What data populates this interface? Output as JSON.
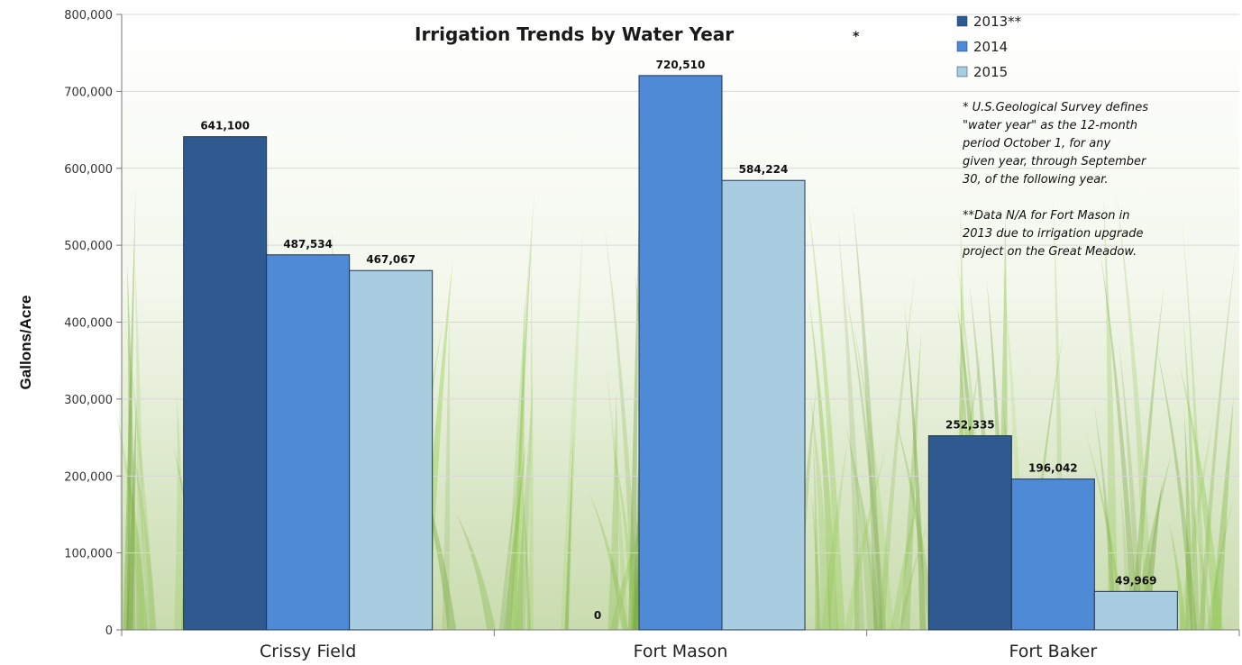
{
  "chart_data": {
    "type": "bar",
    "title": "Irrigation Trends by Water Year",
    "title_mark": "*",
    "ylabel": "Gallons/Acre",
    "xlabel": "",
    "ylim": [
      0,
      800000
    ],
    "yticks": [
      0,
      100000,
      200000,
      300000,
      400000,
      500000,
      600000,
      700000,
      800000
    ],
    "ytick_labels": [
      "0",
      "100,000",
      "200,000",
      "300,000",
      "400,000",
      "500,000",
      "600,000",
      "700,000",
      "800,000"
    ],
    "grid": true,
    "legend_position": "top-right",
    "categories": [
      "Crissy Field",
      "Fort Mason",
      "Fort Baker"
    ],
    "series": [
      {
        "name": "2013**",
        "color": "#2e5a8f",
        "values": [
          641100,
          0,
          252335
        ],
        "labels": [
          "641,100",
          "0",
          "252,335"
        ]
      },
      {
        "name": "2014",
        "color": "#4f8ad6",
        "values": [
          487534,
          720510,
          196042
        ],
        "labels": [
          "487,534",
          "720,510",
          "196,042"
        ]
      },
      {
        "name": "2015",
        "color": "#a8cde0",
        "values": [
          467067,
          584224,
          49969
        ],
        "labels": [
          "467,067",
          "584,224",
          "49,969"
        ]
      }
    ],
    "annotations": [
      "* U.S.Geological Survey defines",
      "\"water year\" as the 12-month",
      "period October 1, for any",
      "given year, through September",
      "30, of the following year.",
      "",
      "**Data N/A for Fort Mason in",
      "2013 due to irrigation upgrade",
      "project on the Great Meadow."
    ]
  }
}
